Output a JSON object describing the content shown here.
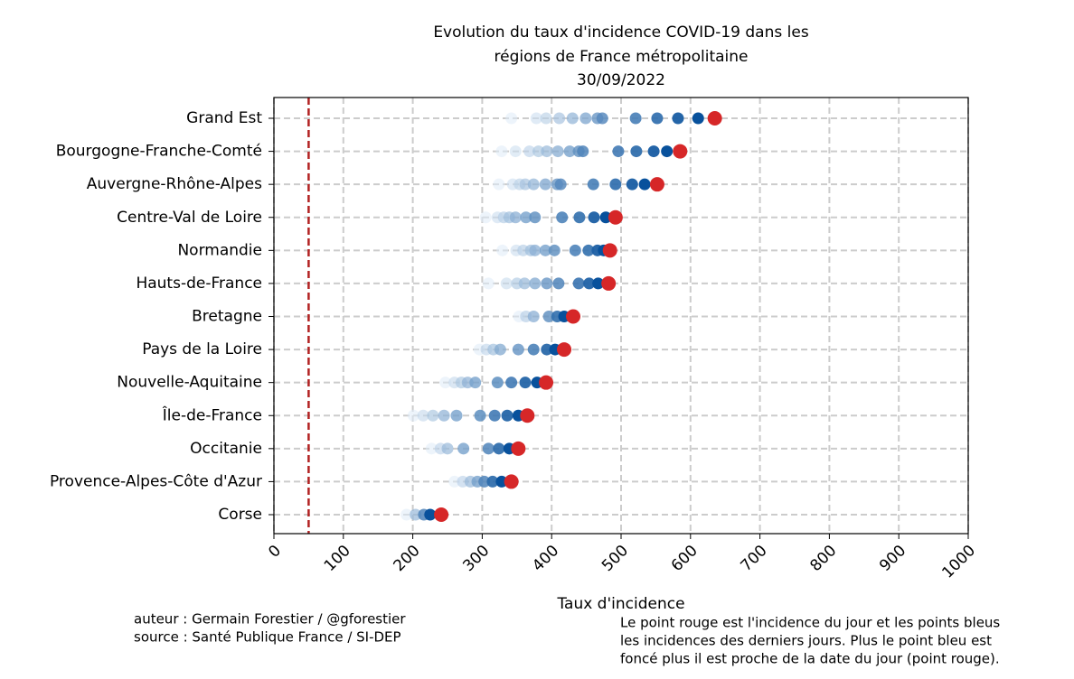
{
  "chart_data": {
    "type": "dot-history",
    "title": [
      "Evolution du taux d'incidence COVID-19 dans les",
      "régions de France métropolitaine",
      "30/09/2022"
    ],
    "xlabel": "Taux d'incidence",
    "categories": [
      "Grand Est",
      "Bourgogne-Franche-Comté",
      "Auvergne-Rhône-Alpes",
      "Centre-Val de Loire",
      "Normandie",
      "Hauts-de-France",
      "Bretagne",
      "Pays de la Loire",
      "Nouvelle-Aquitaine",
      "Île-de-France",
      "Occitanie",
      "Provence-Alpes-Côte d'Azur",
      "Corse"
    ],
    "values": [
      [
        342,
        378,
        392,
        411,
        430,
        449,
        466,
        473,
        521,
        552,
        582,
        611,
        635
      ],
      [
        328,
        348,
        368,
        381,
        393,
        409,
        426,
        439,
        445,
        496,
        522,
        547,
        566,
        585
      ],
      [
        324,
        344,
        354,
        362,
        374,
        391,
        408,
        413,
        460,
        492,
        516,
        534,
        552
      ],
      [
        305,
        322,
        331,
        339,
        348,
        363,
        376,
        415,
        440,
        461,
        478,
        492
      ],
      [
        329,
        349,
        359,
        370,
        376,
        391,
        404,
        434,
        453,
        466,
        475,
        484
      ],
      [
        309,
        335,
        350,
        361,
        376,
        393,
        410,
        439,
        454,
        467,
        482
      ],
      [
        353,
        363,
        374,
        396,
        408,
        418,
        431
      ],
      [
        296,
        306,
        316,
        326,
        352,
        374,
        393,
        405,
        418
      ],
      [
        247,
        260,
        270,
        279,
        290,
        322,
        342,
        362,
        379,
        392
      ],
      [
        201,
        215,
        229,
        245,
        263,
        297,
        318,
        336,
        352,
        365
      ],
      [
        227,
        240,
        250,
        273,
        309,
        324,
        339,
        352
      ],
      [
        260,
        272,
        283,
        293,
        303,
        315,
        328,
        342
      ],
      [
        191,
        204,
        216,
        225,
        241
      ]
    ],
    "history_colors": [
      "#deebf7",
      "#08519c"
    ],
    "current_color": "#d62728",
    "reference_line": 50,
    "reference_color": "#b22222",
    "xlim": [
      0,
      1000
    ],
    "xticks": [
      0,
      100,
      200,
      300,
      400,
      500,
      600,
      700,
      800,
      900,
      1000
    ],
    "grid": true,
    "credits": [
      "auteur : Germain Forestier / @gforestier",
      "source : Santé Publique France / SI-DEP"
    ],
    "note": [
      "Le point rouge est l'incidence du jour et les points bleus",
      "les incidences des derniers jours. Plus le point bleu est",
      "foncé plus il est proche de la date du jour (point rouge)."
    ]
  }
}
